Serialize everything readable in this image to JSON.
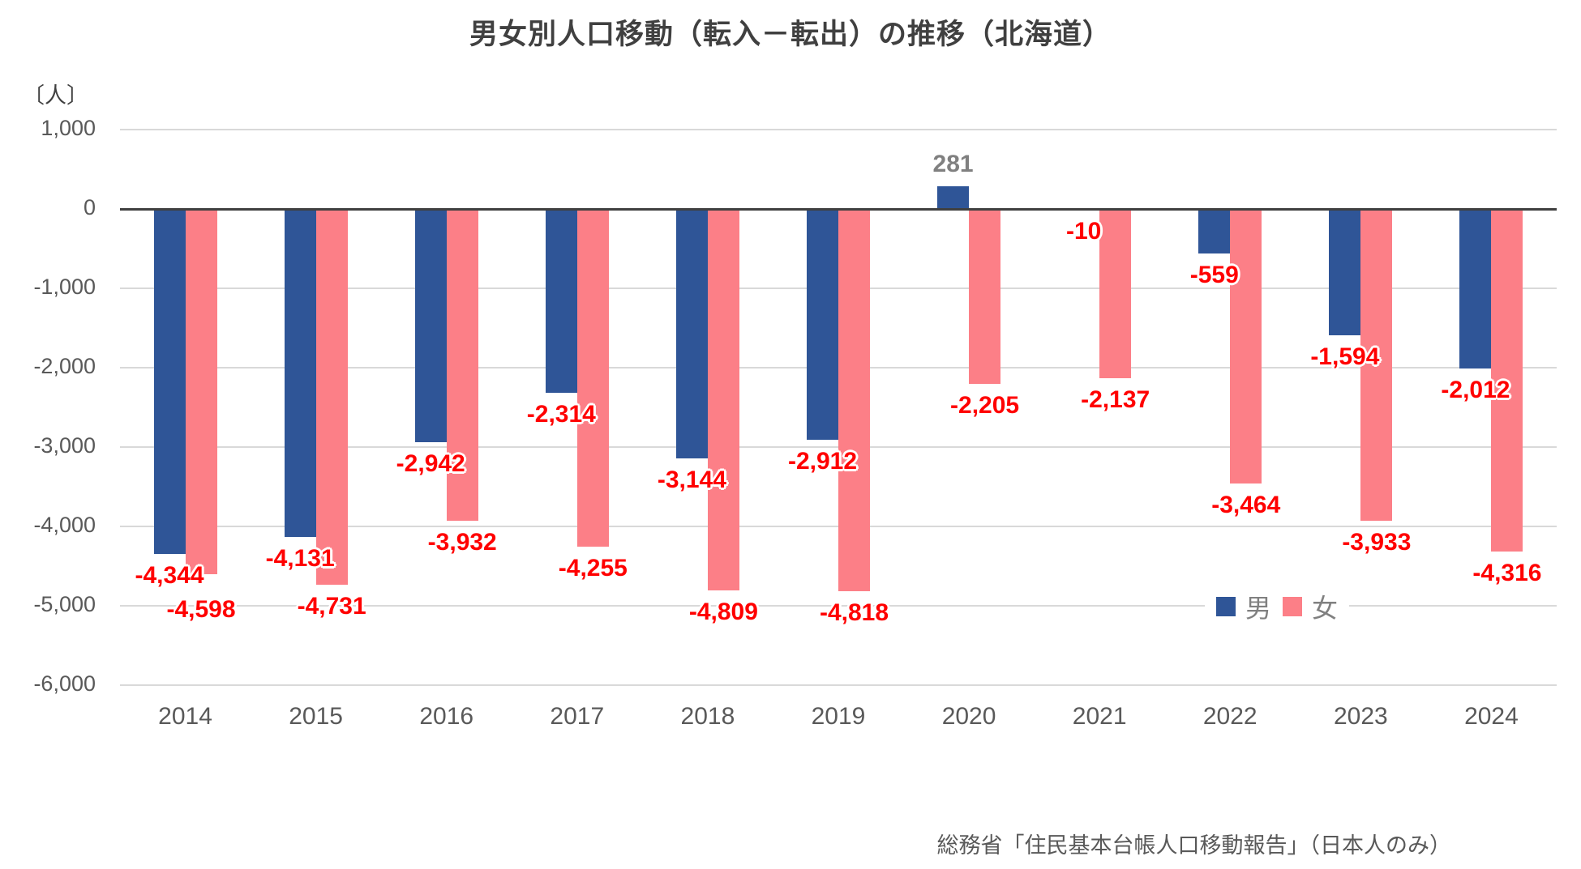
{
  "title": "男女別人口移動（転入－転出）の推移（北海道）",
  "unit_label": "〔人〕",
  "source": "総務省「住民基本台帳人口移動報告」（日本人のみ）",
  "legend": {
    "male": "男",
    "female": "女"
  },
  "colors": {
    "male_bar": "#2F5597",
    "female_bar": "#FC7F87",
    "negative_label": "#FF0000",
    "positive_label": "#808080",
    "axis_text": "#595959",
    "gridline": "#D9D9D9",
    "zero_line": "#404040",
    "title_text": "#404040",
    "legend_text": "#808080"
  },
  "chart_data": {
    "type": "bar",
    "categories": [
      "2014",
      "2015",
      "2016",
      "2017",
      "2018",
      "2019",
      "2020",
      "2021",
      "2022",
      "2023",
      "2024"
    ],
    "series": [
      {
        "name": "男",
        "values": [
          -4344,
          -4131,
          -2942,
          -2314,
          -3144,
          -2912,
          281,
          -10,
          -559,
          -1594,
          -2012
        ],
        "labels": [
          "-4,344",
          "-4,131",
          "-2,942",
          "-2,314",
          "-3,144",
          "-2,912",
          "281",
          "-10",
          "-559",
          "-1,594",
          "-2,012"
        ]
      },
      {
        "name": "女",
        "values": [
          -4598,
          -4731,
          -3932,
          -4255,
          -4809,
          -4818,
          -2205,
          -2137,
          -3464,
          -3933,
          -4316
        ],
        "labels": [
          "-4,598",
          "-4,731",
          "-3,932",
          "-4,255",
          "-4,809",
          "-4,818",
          "-2,205",
          "-2,137",
          "-3,464",
          "-3,933",
          "-4,316"
        ]
      }
    ],
    "ylabel": "〔人〕",
    "ylim": [
      -6000,
      1000
    ],
    "ytick_interval": 1000,
    "yticks": [
      "1,000",
      "0",
      "-1,000",
      "-2,000",
      "-3,000",
      "-4,000",
      "-5,000",
      "-6,000"
    ],
    "grid": true,
    "legend_position": "inside-right",
    "value_labels_shown": true
  }
}
